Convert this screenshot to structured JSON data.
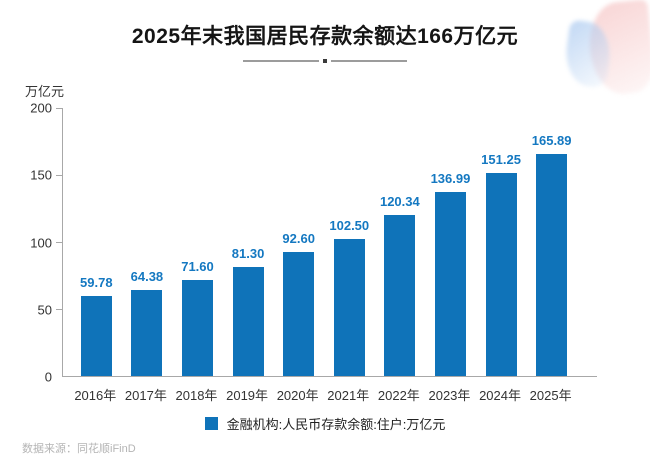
{
  "title": "2025年末我国居民存款余额达166万亿元",
  "source": "数据来源：同花顺iFinD",
  "chart_data": {
    "type": "bar",
    "categories": [
      "2016年",
      "2017年",
      "2018年",
      "2019年",
      "2020年",
      "2021年",
      "2022年",
      "2023年",
      "2024年",
      "2025年"
    ],
    "values": [
      59.78,
      64.38,
      71.6,
      81.3,
      92.6,
      102.5,
      120.34,
      136.99,
      151.25,
      165.89
    ],
    "title": "2025年末我国居民存款余额达166万亿元",
    "xlabel": "",
    "ylabel": "万亿元",
    "unit_label": "万亿元",
    "ylim": [
      0,
      200
    ],
    "y_ticks": [
      0,
      50,
      100,
      150,
      200
    ],
    "grid": false,
    "legend": "金融机构:人民币存款余额:住户:万亿元",
    "legend_position": "bottom",
    "bar_color": "#0f73b9",
    "value_label_color": "#1478c1",
    "axis_color": "#a8a8a8"
  },
  "decor": {
    "blue": "#cfe0f5",
    "pink": "#f6d7d8"
  }
}
